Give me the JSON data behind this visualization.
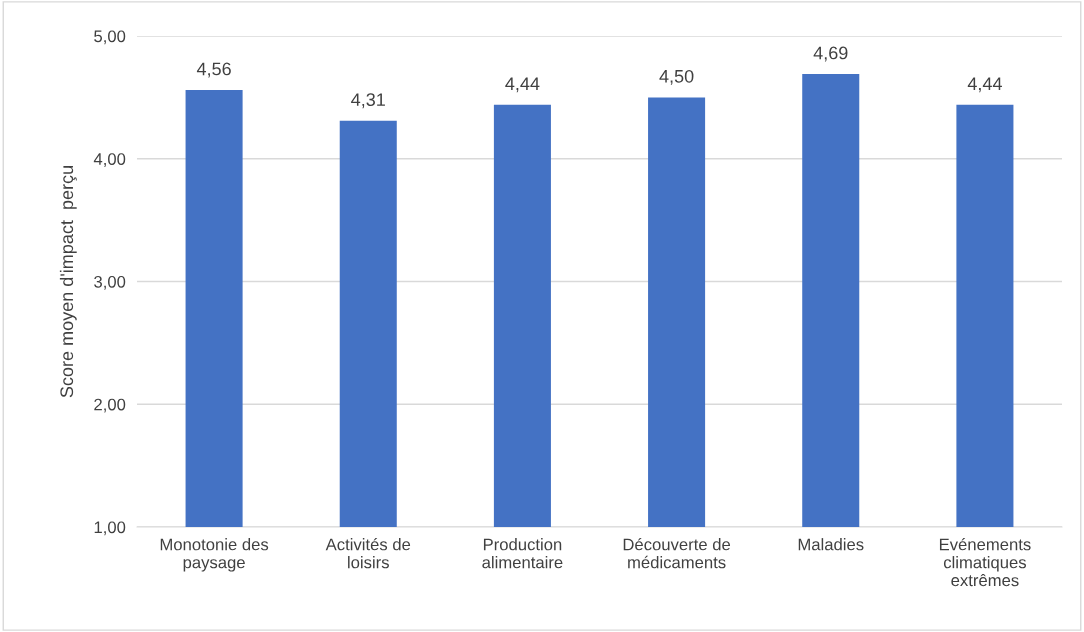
{
  "chart_data": {
    "type": "bar",
    "ylabel": "Score moyen d'impact  perçu",
    "categories": [
      "Monotonie des\npaysage",
      "Activités de\nloisirs",
      "Production\nalimentaire",
      "Découverte de\nmédicaments",
      "Maladies",
      "Evénements\nclimatiques\nextrêmes"
    ],
    "values": [
      4.56,
      4.31,
      4.44,
      4.5,
      4.69,
      4.44
    ],
    "value_labels": [
      "4,56",
      "4,31",
      "4,44",
      "4,50",
      "4,69",
      "4,44"
    ],
    "color": "#4472c4",
    "ylim": [
      1,
      5
    ],
    "yticks": [
      {
        "value": 1,
        "label": "1,00"
      },
      {
        "value": 2,
        "label": "2,00"
      },
      {
        "value": 3,
        "label": "3,00"
      },
      {
        "value": 4,
        "label": "4,00"
      },
      {
        "value": 5,
        "label": "5,00"
      }
    ],
    "grid": "y"
  }
}
